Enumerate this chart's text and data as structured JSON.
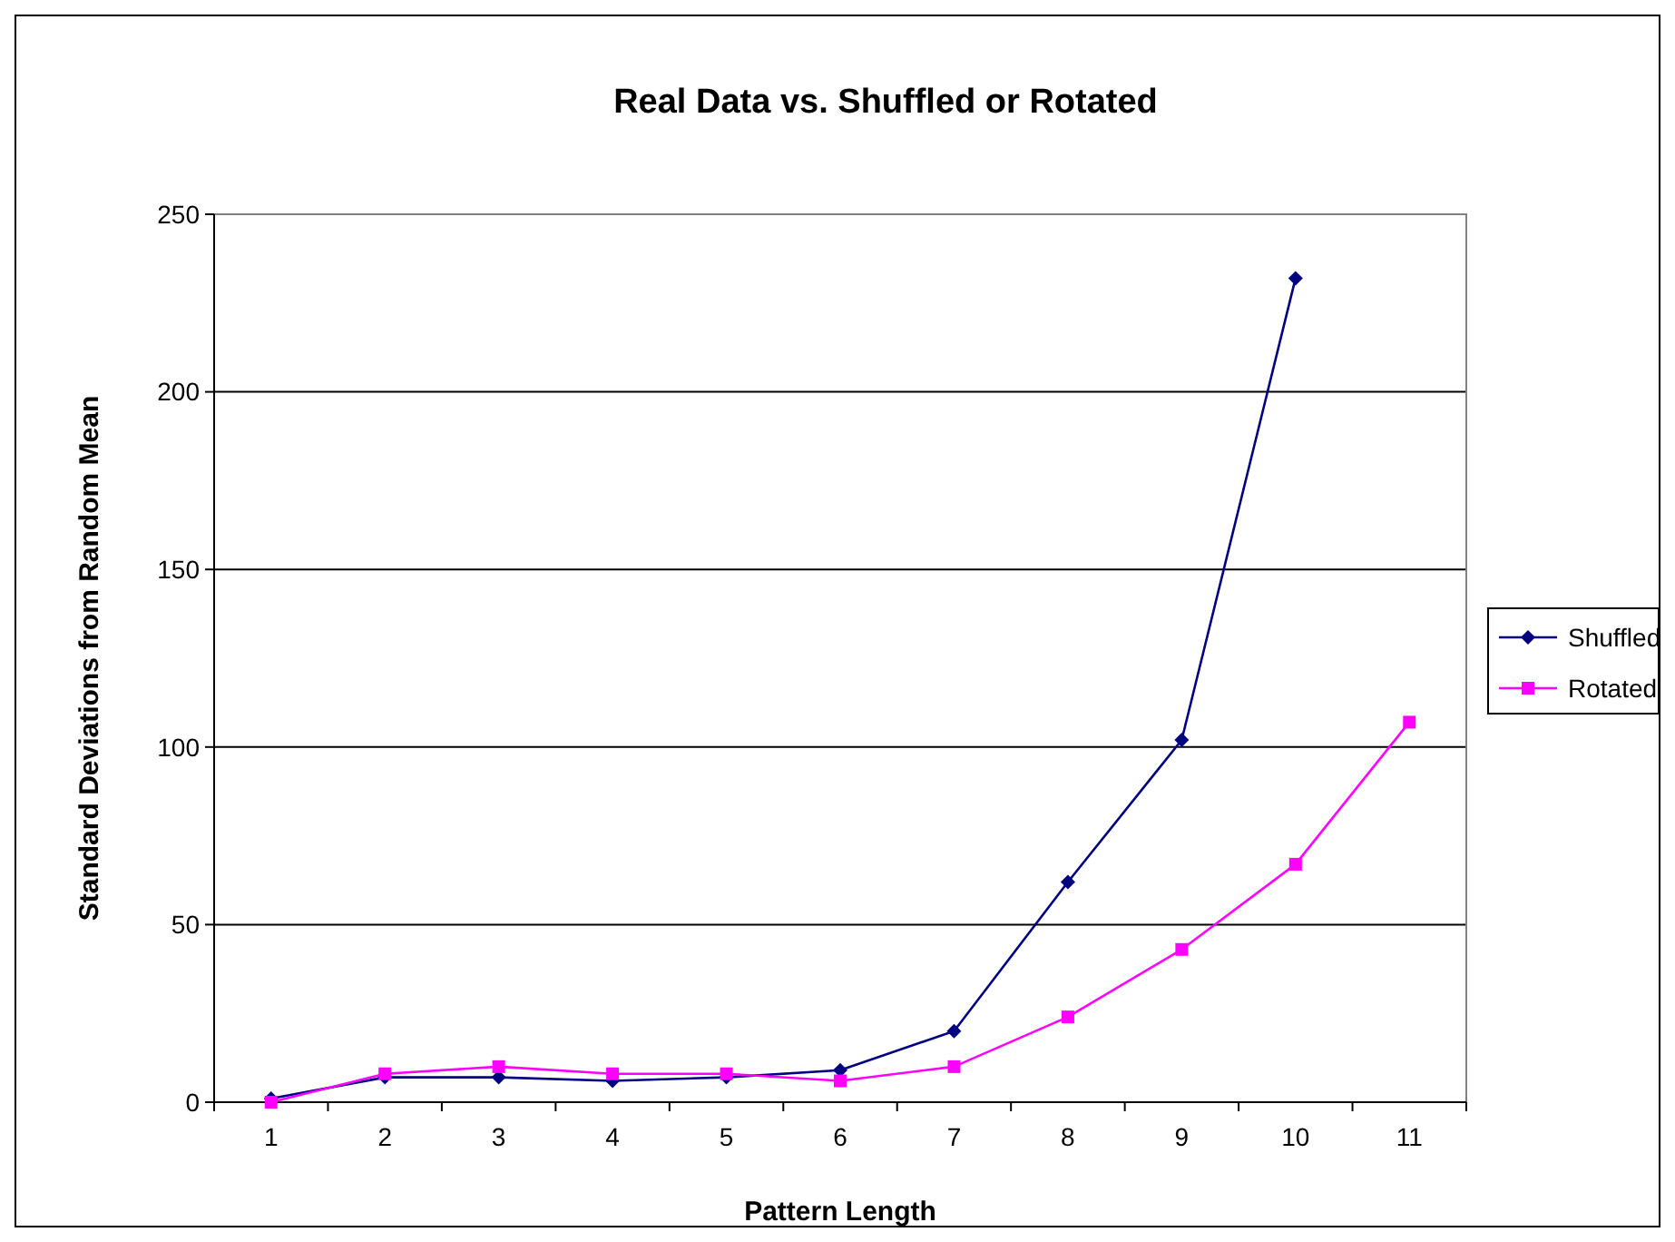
{
  "chart_data": {
    "type": "line",
    "title": "Real Data vs. Shuffled or Rotated",
    "xlabel": "Pattern Length",
    "ylabel": "Standard Deviations from Random Mean",
    "categories": [
      "1",
      "2",
      "3",
      "4",
      "5",
      "6",
      "7",
      "8",
      "9",
      "10",
      "11"
    ],
    "series": [
      {
        "name": "Shuffled",
        "color": "#000080",
        "marker": "diamond",
        "values": [
          1,
          7,
          7,
          6,
          7,
          9,
          20,
          62,
          102,
          232,
          null
        ]
      },
      {
        "name": "Rotated",
        "color": "#ff00ff",
        "marker": "square",
        "values": [
          0,
          8,
          10,
          8,
          8,
          6,
          10,
          24,
          43,
          67,
          107
        ]
      }
    ],
    "ylim": [
      0,
      250
    ],
    "yticks": [
      0,
      50,
      100,
      150,
      200,
      250
    ],
    "grid": "y",
    "legend": "right"
  }
}
